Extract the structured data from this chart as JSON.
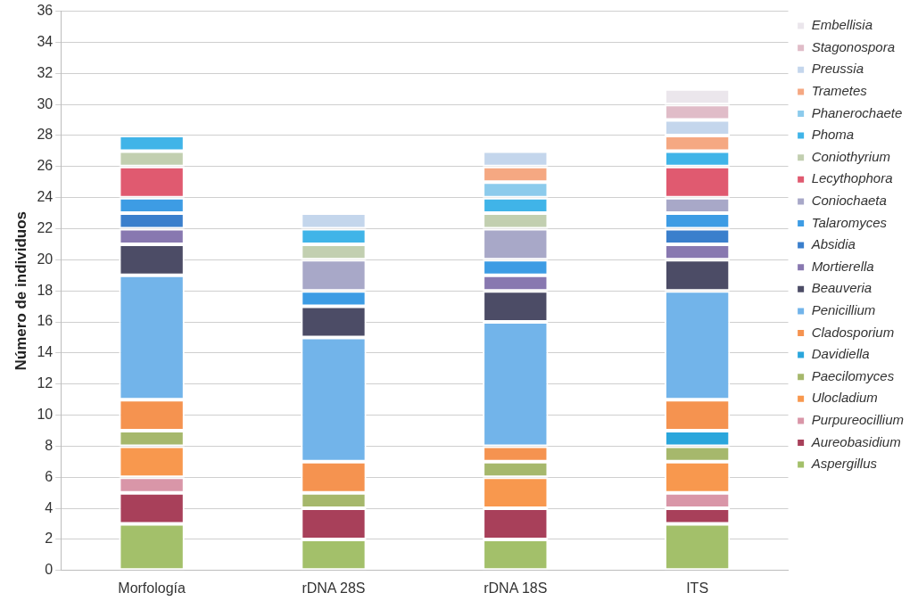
{
  "chart_data": {
    "type": "bar",
    "stacked": true,
    "ylabel": "Número de individuos",
    "categories": [
      "Morfología",
      "rDNA 28S",
      "rDNA 18S",
      "ITS"
    ],
    "ylim": [
      0,
      36
    ],
    "yticks": [
      0,
      2,
      4,
      6,
      8,
      10,
      12,
      14,
      16,
      18,
      20,
      22,
      24,
      26,
      28,
      30,
      32,
      34,
      36
    ],
    "grid": "y",
    "legend": "right",
    "series": [
      {
        "name": "Aspergillus",
        "color": "#a3c06a",
        "values": [
          3,
          2,
          2,
          3
        ]
      },
      {
        "name": "Aureobasidium",
        "color": "#a8405a",
        "values": [
          2,
          2,
          2,
          1
        ]
      },
      {
        "name": "Purpureocillium",
        "color": "#d996a8",
        "values": [
          1,
          0,
          0,
          1
        ]
      },
      {
        "name": "Ulocladium",
        "color": "#f8984e",
        "values": [
          2,
          0,
          2,
          2
        ]
      },
      {
        "name": "Paecilomyces",
        "color": "#a6b86c",
        "values": [
          1,
          1,
          1,
          1
        ]
      },
      {
        "name": "Davidiella",
        "color": "#2aa6dc",
        "values": [
          0,
          0,
          0,
          1
        ]
      },
      {
        "name": "Cladosporium",
        "color": "#f59350",
        "values": [
          2,
          2,
          1,
          2
        ]
      },
      {
        "name": "Penicillium",
        "color": "#72b4ea",
        "values": [
          8,
          8,
          8,
          7
        ]
      },
      {
        "name": "Beauveria",
        "color": "#4c4c66",
        "values": [
          2,
          2,
          2,
          2
        ]
      },
      {
        "name": "Mortierella",
        "color": "#8878b0",
        "values": [
          1,
          0,
          1,
          1
        ]
      },
      {
        "name": "Absidia",
        "color": "#3a7fcc",
        "values": [
          1,
          0,
          0,
          1
        ]
      },
      {
        "name": "Talaromyces",
        "color": "#3d9ce4",
        "values": [
          1,
          1,
          1,
          1
        ]
      },
      {
        "name": "Coniochaeta",
        "color": "#a8a8c8",
        "values": [
          0,
          2,
          2,
          1
        ]
      },
      {
        "name": "Lecythophora",
        "color": "#e05a70",
        "values": [
          2,
          0,
          0,
          2
        ]
      },
      {
        "name": "Coniothyrium",
        "color": "#c2cfb0",
        "values": [
          1,
          1,
          1,
          0
        ]
      },
      {
        "name": "Phoma",
        "color": "#40b4e8",
        "values": [
          1,
          1,
          1,
          1
        ]
      },
      {
        "name": "Phanerochaete",
        "color": "#8ccbec",
        "values": [
          0,
          0,
          1,
          0
        ]
      },
      {
        "name": "Trametes",
        "color": "#f5a882",
        "values": [
          0,
          0,
          1,
          1
        ]
      },
      {
        "name": "Preussia",
        "color": "#c4d6ec",
        "values": [
          0,
          1,
          1,
          1
        ]
      },
      {
        "name": "Stagonospora",
        "color": "#e0bcc8",
        "values": [
          0,
          0,
          0,
          1
        ]
      },
      {
        "name": "Embellisia",
        "color": "#ebe6ec",
        "values": [
          0,
          0,
          0,
          1
        ]
      }
    ]
  }
}
